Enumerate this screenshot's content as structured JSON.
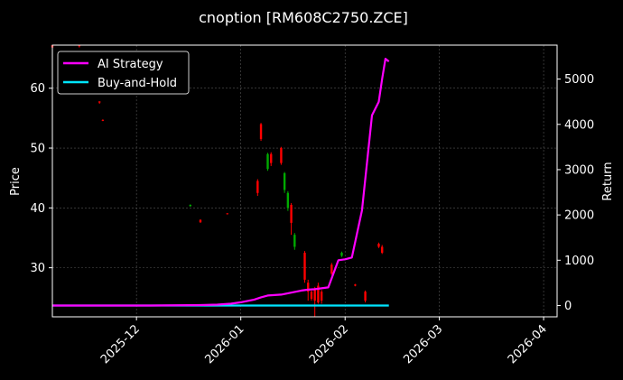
{
  "chart_data": {
    "type": "line",
    "title": "cnoption [RM608C2750.ZCE]",
    "xlabel": "",
    "ylabel_left": "Price",
    "ylabel_right": "Return",
    "x_ticks": [
      "2025-12",
      "2026-01",
      "2026-02",
      "2026-03",
      "2026-04"
    ],
    "x_range": [
      "2025-11-06",
      "2026-04-05"
    ],
    "y_left_ticks": [
      30,
      40,
      50,
      60
    ],
    "y_left_range": [
      21.8,
      67.2
    ],
    "y_right_ticks": [
      0,
      1000,
      2000,
      3000,
      4000,
      5000
    ],
    "y_right_range": [
      -250,
      5750
    ],
    "grid": true,
    "legend_position": "top-left",
    "colors": {
      "background": "#000000",
      "ai_strategy": "#ff00ff",
      "buy_and_hold": "#00e5ff",
      "candle_up": "#ff0000",
      "candle_down": "#00aa00",
      "grid": "#555555"
    },
    "series": [
      {
        "name": "AI Strategy",
        "axis": "right",
        "x": [
          "2025-11-06",
          "2025-11-20",
          "2025-12-05",
          "2025-12-20",
          "2025-12-25",
          "2025-12-29",
          "2026-01-01",
          "2026-01-05",
          "2026-01-07",
          "2026-01-09",
          "2026-01-11",
          "2026-01-13",
          "2026-01-15",
          "2026-01-17",
          "2026-01-19",
          "2026-01-21",
          "2026-01-23",
          "2026-01-25",
          "2026-01-27",
          "2026-01-30",
          "2026-02-01",
          "2026-02-03",
          "2026-02-06",
          "2026-02-09",
          "2026-02-11",
          "2026-02-12",
          "2026-02-13",
          "2026-02-14"
        ],
        "values": [
          0,
          0,
          0,
          10,
          20,
          40,
          70,
          130,
          180,
          220,
          230,
          240,
          270,
          300,
          330,
          350,
          360,
          380,
          400,
          1000,
          1020,
          1060,
          2100,
          4200,
          4500,
          5000,
          5450,
          5390
        ]
      },
      {
        "name": "Buy-and-Hold",
        "axis": "right",
        "x": [
          "2025-11-06",
          "2026-02-14"
        ],
        "values": [
          0,
          0
        ]
      }
    ],
    "candles": [
      {
        "date": "2025-11-06",
        "open": 66.8,
        "close": 67.2,
        "high": 67.2,
        "low": 66.6
      },
      {
        "date": "2025-11-14",
        "open": 67.0,
        "close": 67.2,
        "high": 67.2,
        "low": 66.8
      },
      {
        "date": "2025-11-20",
        "open": 57.6,
        "close": 57.8,
        "high": 57.8,
        "low": 57.4
      },
      {
        "date": "2025-11-21",
        "open": 54.6,
        "close": 54.7,
        "high": 54.8,
        "low": 54.5
      },
      {
        "date": "2025-12-17",
        "open": 40.5,
        "close": 40.3,
        "high": 40.6,
        "low": 40.2
      },
      {
        "date": "2025-12-20",
        "open": 37.6,
        "close": 38.0,
        "high": 38.1,
        "low": 37.5
      },
      {
        "date": "2025-12-28",
        "open": 39.0,
        "close": 39.1,
        "high": 39.1,
        "low": 38.9
      },
      {
        "date": "2026-01-06",
        "open": 42.5,
        "close": 44.5,
        "high": 44.8,
        "low": 42.0
      },
      {
        "date": "2026-01-07",
        "open": 51.5,
        "close": 54.0,
        "high": 54.2,
        "low": 51.2
      },
      {
        "date": "2026-01-09",
        "open": 49.0,
        "close": 46.5,
        "high": 49.2,
        "low": 46.2
      },
      {
        "date": "2026-01-10",
        "open": 47.5,
        "close": 49.0,
        "high": 49.3,
        "low": 47.0
      },
      {
        "date": "2026-01-13",
        "open": 47.5,
        "close": 50.0,
        "high": 50.2,
        "low": 47.2
      },
      {
        "date": "2026-01-14",
        "open": 45.8,
        "close": 43.0,
        "high": 46.0,
        "low": 42.5
      },
      {
        "date": "2026-01-15",
        "open": 42.5,
        "close": 40.0,
        "high": 42.8,
        "low": 39.5
      },
      {
        "date": "2026-01-16",
        "open": 37.5,
        "close": 40.5,
        "high": 40.8,
        "low": 35.5
      },
      {
        "date": "2026-01-17",
        "open": 35.5,
        "close": 33.5,
        "high": 35.8,
        "low": 33.0
      },
      {
        "date": "2026-01-20",
        "open": 28.0,
        "close": 32.5,
        "high": 32.8,
        "low": 27.5
      },
      {
        "date": "2026-01-21",
        "open": 26.0,
        "close": 27.5,
        "high": 28.0,
        "low": 24.5
      },
      {
        "date": "2026-01-22",
        "open": 24.8,
        "close": 26.0,
        "high": 26.2,
        "low": 24.5
      },
      {
        "date": "2026-01-23",
        "open": 24.5,
        "close": 26.5,
        "high": 26.8,
        "low": 21.8
      },
      {
        "date": "2026-01-24",
        "open": 24.2,
        "close": 27.0,
        "high": 27.5,
        "low": 24.0
      },
      {
        "date": "2026-01-25",
        "open": 24.5,
        "close": 26.0,
        "high": 26.3,
        "low": 24.0
      },
      {
        "date": "2026-01-28",
        "open": 29.0,
        "close": 30.5,
        "high": 30.8,
        "low": 28.8
      },
      {
        "date": "2026-01-31",
        "open": 32.5,
        "close": 32.0,
        "high": 32.7,
        "low": 31.8
      },
      {
        "date": "2026-02-04",
        "open": 27.0,
        "close": 27.2,
        "high": 27.3,
        "low": 26.9
      },
      {
        "date": "2026-02-07",
        "open": 24.5,
        "close": 26.0,
        "high": 26.2,
        "low": 24.2
      },
      {
        "date": "2026-02-11",
        "open": 33.5,
        "close": 34.0,
        "high": 34.2,
        "low": 33.3
      },
      {
        "date": "2026-02-12",
        "open": 32.5,
        "close": 33.5,
        "high": 33.8,
        "low": 32.3
      }
    ]
  }
}
